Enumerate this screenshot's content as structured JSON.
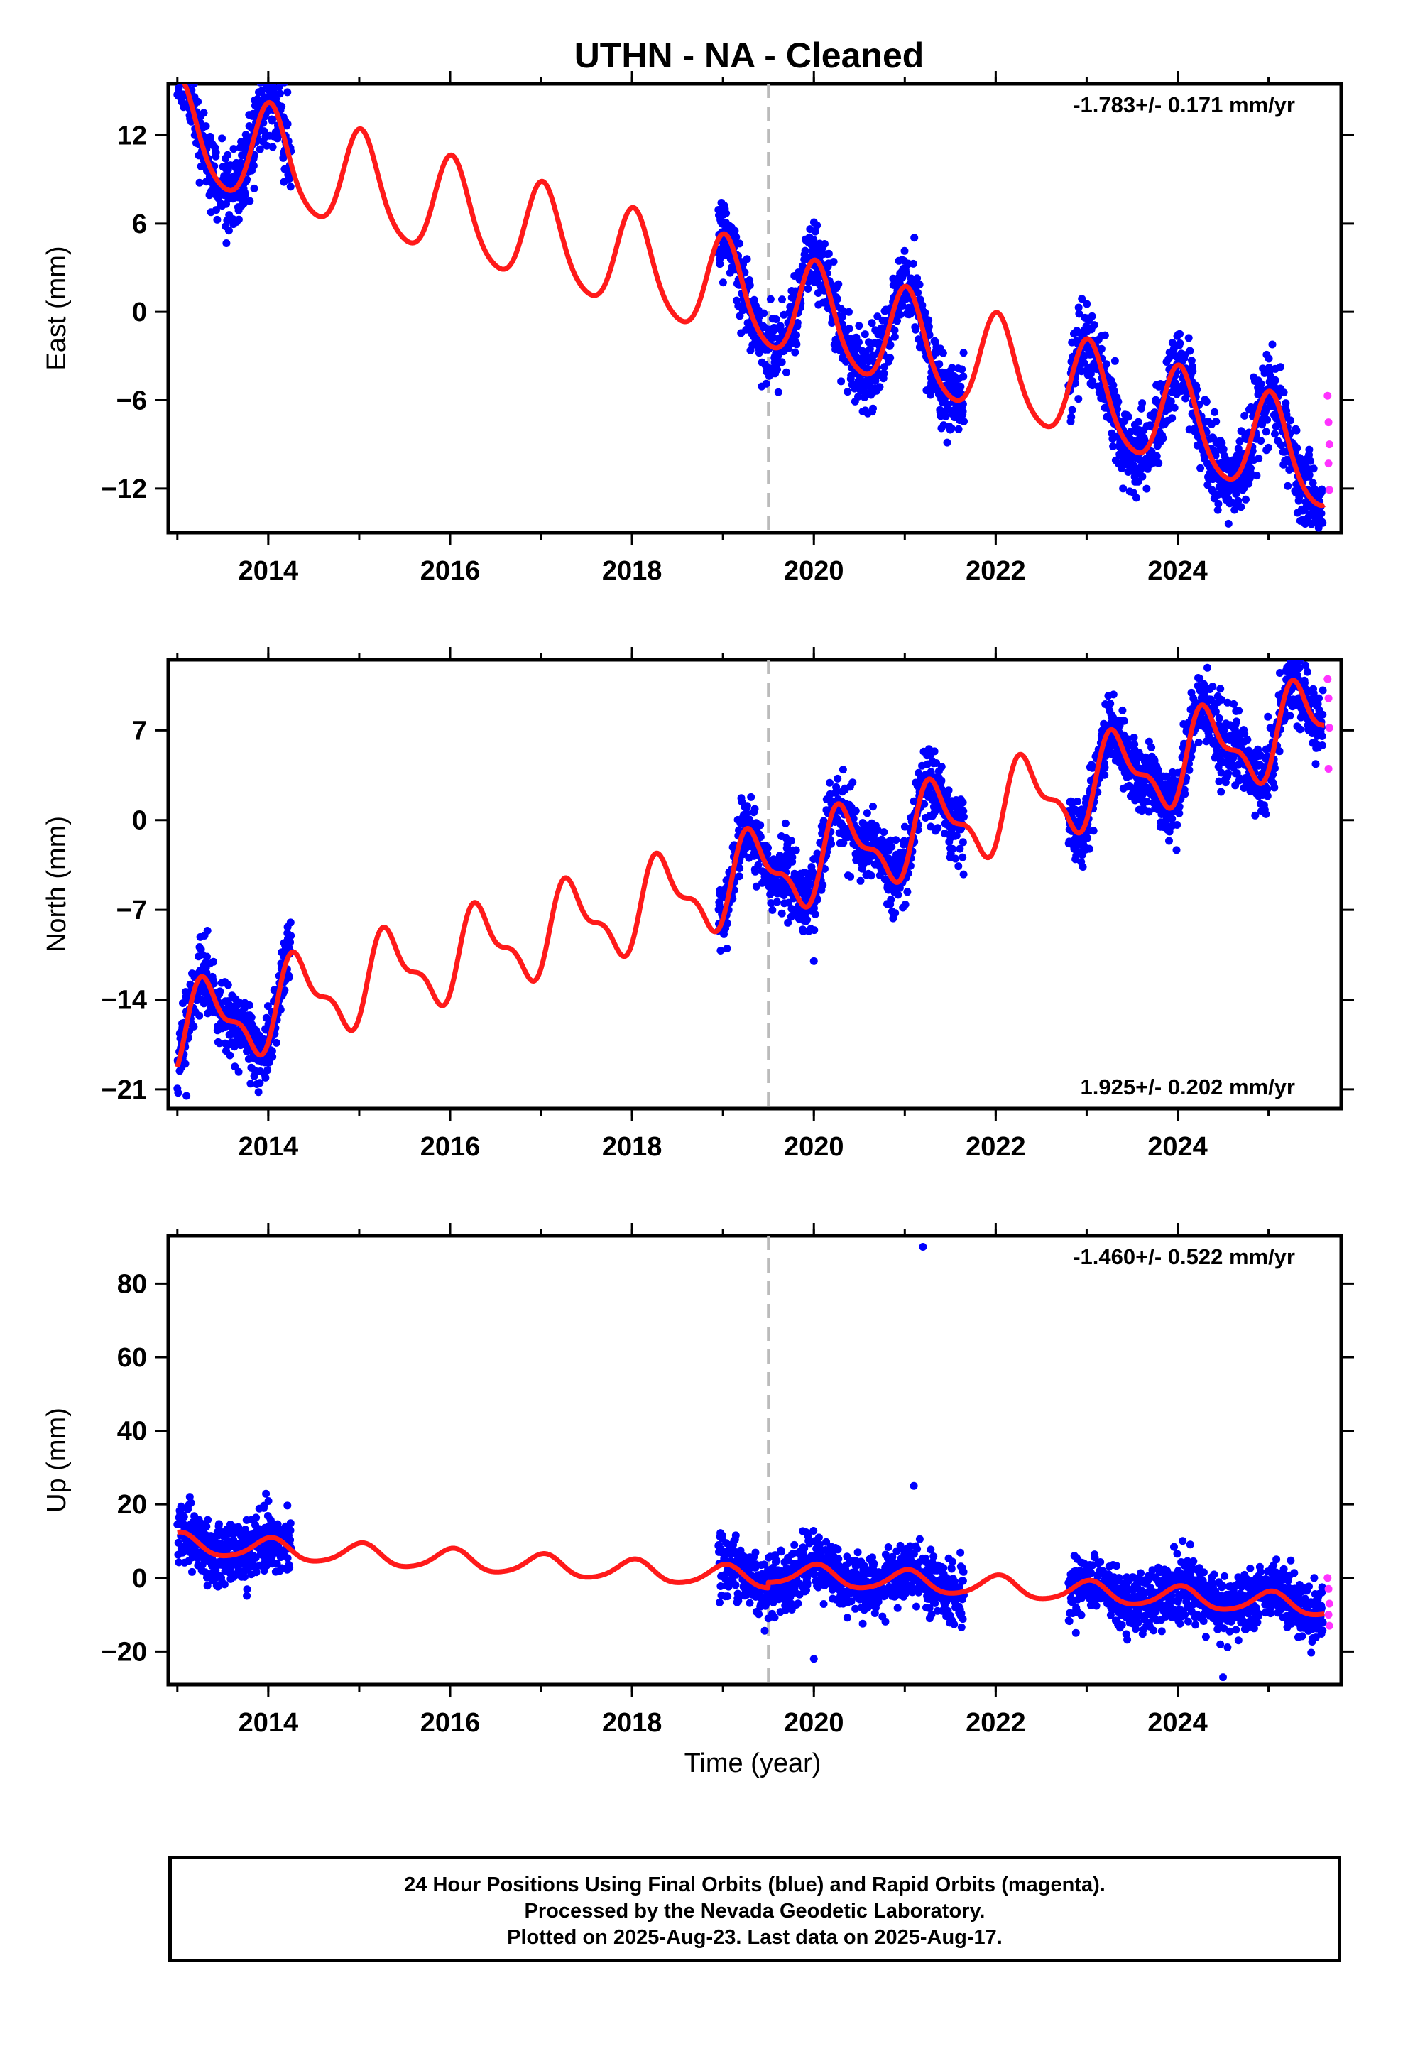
{
  "title": "UTHN  - NA - Cleaned",
  "xlabel": "Time (year)",
  "colors": {
    "final": "#0000ff",
    "rapid": "#ff33ff",
    "fit": "#ff1a1a",
    "event": "#bbbbbb",
    "frame": "#000000"
  },
  "chart_data": [
    {
      "type": "scatter",
      "panel": "East",
      "ylabel": "East (mm)",
      "xlim": [
        2012.9,
        2025.8
      ],
      "ylim": [
        -15,
        15.5
      ],
      "yticks": [
        12,
        6,
        0,
        -6,
        -12
      ],
      "ytick_labels": [
        "12",
        "6",
        "0",
        "−6",
        "−12"
      ],
      "xticks": [
        2014,
        2016,
        2018,
        2020,
        2022,
        2024
      ],
      "xtick_labels": [
        "2014",
        "2016",
        "2018",
        "2020",
        "2022",
        "2024"
      ],
      "rate": "-1.783+/- 0.171 mm/yr",
      "rate_position": "top-right",
      "event_year": 2019.5,
      "data_segments": [
        [
          2013.0,
          2014.25
        ],
        [
          2018.95,
          2021.65
        ],
        [
          2022.8,
          2025.6
        ]
      ],
      "model": {
        "t0": 2019,
        "offset": 1.5,
        "velocity": -1.783,
        "annual_cos": 3.3,
        "annual_sin": 0.6,
        "semi_cos": 0.5,
        "semi_sin": 0.0,
        "jump_at_event": 0
      },
      "noise_mm": 1.3,
      "outliers": [
        {
          "x": 2025.35,
          "y": -14.2
        },
        {
          "x": 2023.4,
          "y": -12.0
        }
      ],
      "rapid_points": [
        [
          2025.65,
          -5.7
        ],
        [
          2025.66,
          -7.5
        ],
        [
          2025.67,
          -9.0
        ],
        [
          2025.66,
          -10.3
        ],
        [
          2025.67,
          -12.1
        ]
      ],
      "seed": 11
    },
    {
      "type": "scatter",
      "panel": "North",
      "ylabel": "North (mm)",
      "xlim": [
        2012.9,
        2025.8
      ],
      "ylim": [
        -22.5,
        12.5
      ],
      "yticks": [
        7,
        0,
        -7,
        -14,
        -21
      ],
      "ytick_labels": [
        "7",
        "0",
        "−7",
        "−14",
        "−21"
      ],
      "xticks": [
        2014,
        2016,
        2018,
        2020,
        2022,
        2024
      ],
      "xtick_labels": [
        "2014",
        "2016",
        "2018",
        "2020",
        "2022",
        "2024"
      ],
      "rate": "1.925+/- 0.202 mm/yr",
      "rate_position": "bottom-right",
      "event_year": 2019.5,
      "data_segments": [
        [
          2013.0,
          2014.25
        ],
        [
          2018.95,
          2021.65
        ],
        [
          2022.8,
          2025.6
        ]
      ],
      "model": {
        "t0": 2019,
        "offset": -5.0,
        "velocity": 1.925,
        "annual_cos": -1.5,
        "annual_sin": 2.6,
        "semi_cos": -1.2,
        "semi_sin": 0.4,
        "jump_at_event": 0
      },
      "noise_mm": 1.3,
      "outliers": [
        {
          "x": 2020.0,
          "y": -11.0
        },
        {
          "x": 2013.1,
          "y": -21.5
        }
      ],
      "rapid_points": [
        [
          2025.65,
          11.0
        ],
        [
          2025.66,
          9.5
        ],
        [
          2025.67,
          7.2
        ],
        [
          2025.66,
          4.0
        ]
      ],
      "seed": 23
    },
    {
      "type": "scatter",
      "panel": "Up",
      "ylabel": "Up (mm)",
      "xlim": [
        2012.9,
        2025.8
      ],
      "ylim": [
        -29,
        93
      ],
      "yticks": [
        80,
        60,
        40,
        20,
        0,
        -20
      ],
      "ytick_labels": [
        "80",
        "60",
        "40",
        "20",
        "0",
        "−20"
      ],
      "xticks": [
        2014,
        2016,
        2018,
        2020,
        2022,
        2024
      ],
      "xtick_labels": [
        "2014",
        "2016",
        "2018",
        "2020",
        "2022",
        "2024"
      ],
      "rate": "-1.460+/- 0.522 mm/yr",
      "rate_position": "top-right",
      "event_year": 2019.5,
      "data_segments": [
        [
          2013.0,
          2014.25
        ],
        [
          2018.95,
          2021.65
        ],
        [
          2022.8,
          2025.6
        ]
      ],
      "model": {
        "t0": 2019,
        "offset": 0.5,
        "velocity": -1.46,
        "annual_cos": 2.8,
        "annual_sin": 0.5,
        "semi_cos": 0.3,
        "semi_sin": 0.3,
        "jump_at_event": 1.5
      },
      "noise_mm": 4.0,
      "outliers": [
        {
          "x": 2021.2,
          "y": 90.0
        },
        {
          "x": 2021.1,
          "y": 25.0
        },
        {
          "x": 2020.0,
          "y": -22.0
        },
        {
          "x": 2024.5,
          "y": -27.0
        }
      ],
      "rapid_points": [
        [
          2025.65,
          0.0
        ],
        [
          2025.66,
          -3.0
        ],
        [
          2025.67,
          -7.0
        ],
        [
          2025.66,
          -10.0
        ],
        [
          2025.67,
          -13.0
        ]
      ],
      "seed": 37
    }
  ],
  "footer": {
    "line1": "24 Hour Positions Using Final Orbits (blue) and Rapid Orbits (magenta).",
    "line2": "Processed by the Nevada Geodetic Laboratory.",
    "line3": "Plotted on 2025-Aug-23. Last data on 2025-Aug-17."
  }
}
